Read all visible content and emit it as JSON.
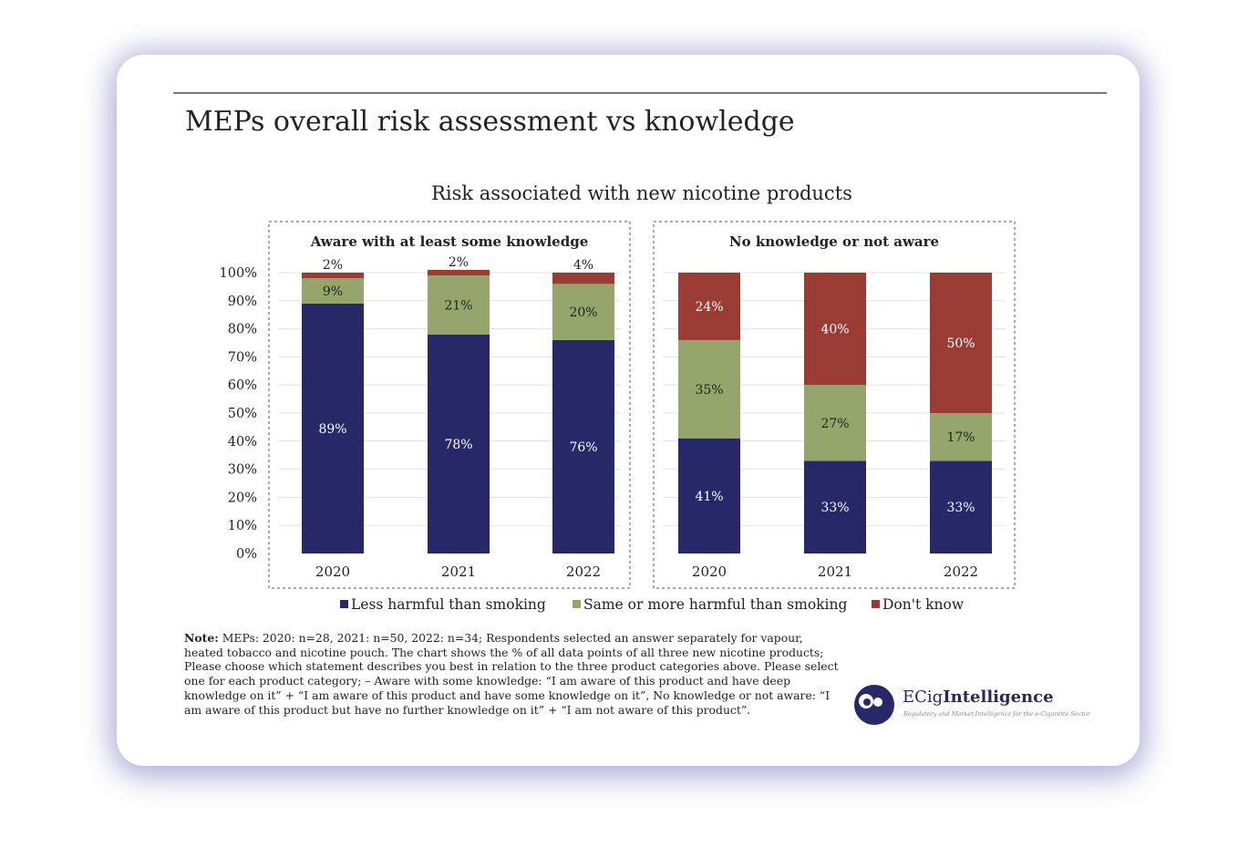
{
  "page": {
    "title": "MEPs overall risk assessment vs knowledge",
    "note_label": "Note:",
    "note_text": " MEPs: 2020: n=28, 2021: n=50, 2022: n=34; Respondents selected an answer separately for vapour, heated tobacco and nicotine pouch. The chart shows the % of all data points of all three new nicotine products; Please choose which statement describes you best in relation to the three product categories above. Please select one for each product category; – Aware with some knowledge: “I am aware of this product and have deep knowledge on it” + “I am aware of this product and have some knowledge on it”, No knowledge or not aware: “I am aware of this product but have no further knowledge on it” + “I am not aware of this product”."
  },
  "logo": {
    "name_plain": "ECig",
    "name_bold": "Intelligence",
    "tagline": "Regulatory and Market Intelligence for the e-Cigarette Sector",
    "icon": "eci-logo-mark"
  },
  "colors": {
    "less_harmful": "#262867",
    "same_or_more": "#96a56b",
    "dont_know": "#9b3c34"
  },
  "chart_data": {
    "type": "bar",
    "stacked": true,
    "title": "Risk associated with new nicotine products",
    "yticks": [
      "0%",
      "10%",
      "20%",
      "30%",
      "40%",
      "50%",
      "60%",
      "70%",
      "80%",
      "90%",
      "100%"
    ],
    "ylim": [
      0,
      100
    ],
    "grid": true,
    "legend_position": "bottom",
    "series_names": [
      "Less harmful than smoking",
      "Same or more harmful than smoking",
      "Don't know"
    ],
    "panels": [
      {
        "title": "Aware with at least some knowledge",
        "categories": [
          "2020",
          "2021",
          "2022"
        ],
        "series": [
          {
            "name": "Less harmful than smoking",
            "values": [
              89,
              78,
              76
            ],
            "labels": [
              "89%",
              "78%",
              "76%"
            ]
          },
          {
            "name": "Same or more harmful than smoking",
            "values": [
              9,
              21,
              20
            ],
            "labels": [
              "9%",
              "21%",
              "20%"
            ]
          },
          {
            "name": "Don't know",
            "values": [
              2,
              2,
              4
            ],
            "labels": [
              "2%",
              "2%",
              "4%"
            ]
          }
        ]
      },
      {
        "title": "No knowledge or not aware",
        "categories": [
          "2020",
          "2021",
          "2022"
        ],
        "series": [
          {
            "name": "Less harmful than smoking",
            "values": [
              41,
              33,
              33
            ],
            "labels": [
              "41%",
              "33%",
              "33%"
            ]
          },
          {
            "name": "Same or more harmful than smoking",
            "values": [
              35,
              27,
              17
            ],
            "labels": [
              "35%",
              "27%",
              "17%"
            ]
          },
          {
            "name": "Don't know",
            "values": [
              24,
              40,
              50
            ],
            "labels": [
              "24%",
              "40%",
              "50%"
            ]
          }
        ]
      }
    ]
  }
}
